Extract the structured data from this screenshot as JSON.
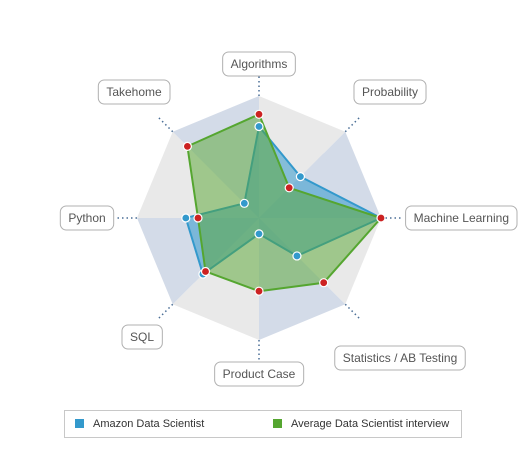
{
  "chart_data": {
    "type": "radar",
    "axes": [
      "Algorithms",
      "Probability",
      "Machine Learning",
      "Statistics / AB Testing",
      "Product Case",
      "SQL",
      "Python",
      "Takehome"
    ],
    "rmax": 10,
    "grid_levels": 4,
    "series": [
      {
        "name": "Amazon Data Scientist",
        "color": "#3399cc",
        "values": [
          7.5,
          4.8,
          10,
          4.4,
          1.3,
          6.5,
          6.0,
          1.7
        ]
      },
      {
        "name": "Average Data Scientist interview",
        "color": "#55a630",
        "values": [
          8.5,
          3.5,
          10,
          7.5,
          6.0,
          6.2,
          5.0,
          8.3
        ]
      }
    ],
    "point_color": "#cc2222",
    "legend_position": "bottom"
  }
}
